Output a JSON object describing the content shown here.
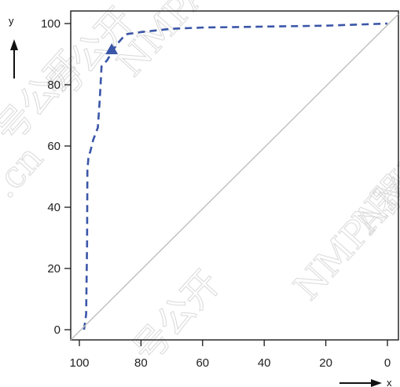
{
  "chart_data": {
    "type": "line",
    "title": "",
    "xlabel": "x",
    "ylabel": "y",
    "xlim": [
      100,
      0
    ],
    "ylim": [
      0,
      100
    ],
    "x_reversed": true,
    "xticks": [
      100,
      80,
      60,
      40,
      20,
      0
    ],
    "yticks": [
      0,
      20,
      40,
      60,
      80,
      100
    ],
    "grid": false,
    "legend": "none",
    "series": [
      {
        "style": "dashed",
        "color": "#3a56a8",
        "x": [
          98.5,
          97.8,
          97.5,
          97.4,
          97.0,
          96.5,
          95.5,
          94.0,
          93.4,
          93.0,
          92.8,
          91.0,
          88.0,
          85.0,
          80.0,
          70.0,
          60.0,
          40.0,
          20.0,
          0.0
        ],
        "y": [
          0,
          5,
          28,
          52,
          57,
          58,
          62,
          66,
          75,
          82,
          86,
          88,
          93,
          96.5,
          97.2,
          98.3,
          98.7,
          99.0,
          99.3,
          100
        ]
      },
      {
        "style": "solid",
        "color": "#bbbbbb",
        "x": [
          100,
          0
        ],
        "y": [
          0,
          100
        ]
      }
    ],
    "annotations": [
      {
        "shape": "triangle",
        "color": "#3a56a8",
        "x": 89.5,
        "y": 91.5
      }
    ]
  },
  "watermarks": [
    "NMPA器",
    "NMPA器",
    "NMPA",
    "号公开",
    "号公开",
    "号公开",
    ".cn"
  ]
}
